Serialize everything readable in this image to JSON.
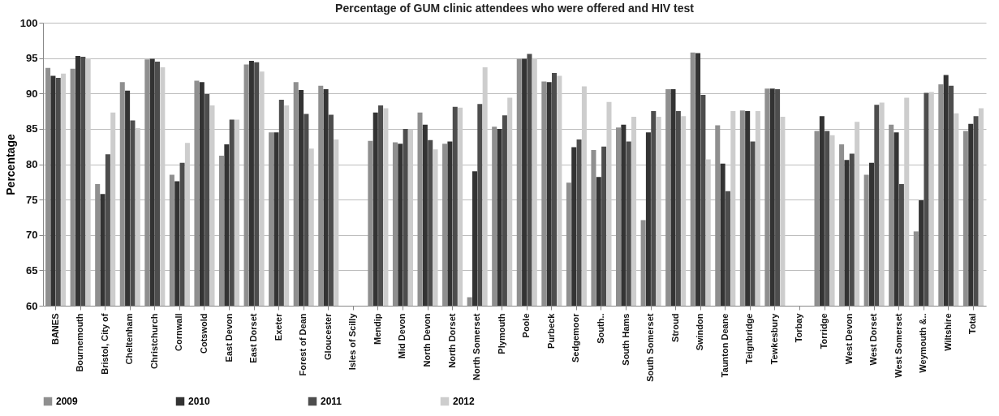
{
  "chart_data": {
    "type": "bar",
    "title": "Percentage of GUM clinic attendees who were offered and HIV test",
    "ylabel": "Percentage",
    "categories": [
      "BANES",
      "Bournemouth",
      "Bristol, City of",
      "Cheltenham",
      "Christchurch",
      "Cornwall",
      "Cotswold",
      "East Devon",
      "East Dorset",
      "Exeter",
      "Forest of Dean",
      "Gloucester",
      "Isles of Scilly",
      "Mendip",
      "Mid Devon",
      "North Devon",
      "North Dorset",
      "North Somerset",
      "Plymouth",
      "Poole",
      "Purbeck",
      "Sedgemoor",
      "South..",
      "South Hams",
      "South Somerset",
      "Stroud",
      "Swindon",
      "Taunton Deane",
      "Teignbridge",
      "Tewkesbury",
      "Torbay",
      "Torridge",
      "West Devon",
      "West Dorset",
      "West Somerset",
      "Weymouth &..",
      "Wiltshire",
      "Total"
    ],
    "series": [
      {
        "name": "2009",
        "color": "#8f8f8f",
        "values": [
          93.6,
          93.5,
          77.2,
          91.6,
          94.8,
          78.5,
          91.8,
          81.2,
          94.1,
          84.5,
          91.6,
          91.1,
          null,
          83.3,
          83.1,
          87.3,
          82.9,
          61.2,
          85.3,
          94.9,
          91.7,
          77.4,
          82.0,
          85.2,
          72.1,
          90.6,
          95.8,
          85.5,
          87.6,
          90.7,
          null,
          84.7,
          82.8,
          78.5,
          85.6,
          70.5,
          91.3,
          84.7
        ]
      },
      {
        "name": "2010",
        "color": "#333333",
        "values": [
          92.5,
          95.3,
          75.8,
          90.4,
          94.9,
          77.6,
          91.6,
          82.8,
          94.6,
          84.5,
          90.5,
          90.6,
          null,
          87.3,
          82.9,
          85.6,
          83.2,
          79.0,
          85.0,
          94.9,
          91.6,
          82.4,
          78.2,
          85.6,
          84.5,
          90.6,
          95.7,
          80.1,
          87.5,
          90.7,
          null,
          86.8,
          80.6,
          80.2,
          84.5,
          74.9,
          92.6,
          85.7
        ]
      },
      {
        "name": "2011",
        "color": "#4d4d4d",
        "values": [
          92.2,
          95.2,
          81.4,
          86.2,
          94.5,
          80.2,
          89.9,
          86.3,
          94.4,
          89.1,
          87.1,
          87.0,
          null,
          88.3,
          85.0,
          83.4,
          88.1,
          88.5,
          86.9,
          95.6,
          92.9,
          83.5,
          82.5,
          83.2,
          87.5,
          87.5,
          89.8,
          76.2,
          83.2,
          90.6,
          null,
          84.7,
          81.5,
          88.4,
          77.2,
          90.1,
          91.1,
          86.8
        ]
      },
      {
        "name": "2012",
        "color": "#cdcdcd",
        "values": [
          92.8,
          95.0,
          87.3,
          85.1,
          93.7,
          83.0,
          88.3,
          86.3,
          93.1,
          88.3,
          82.2,
          83.5,
          null,
          87.9,
          84.9,
          82.1,
          88.0,
          93.7,
          89.4,
          95.0,
          92.5,
          91.0,
          88.8,
          86.7,
          86.7,
          86.8,
          80.7,
          87.5,
          87.5,
          86.7,
          null,
          84.1,
          86.0,
          88.7,
          89.4,
          90.2,
          87.2,
          87.9
        ]
      }
    ],
    "ylim": [
      60,
      100
    ],
    "yticks": [
      60,
      65,
      70,
      75,
      80,
      85,
      90,
      95,
      100
    ],
    "grid": "y",
    "legend": "bottom"
  }
}
